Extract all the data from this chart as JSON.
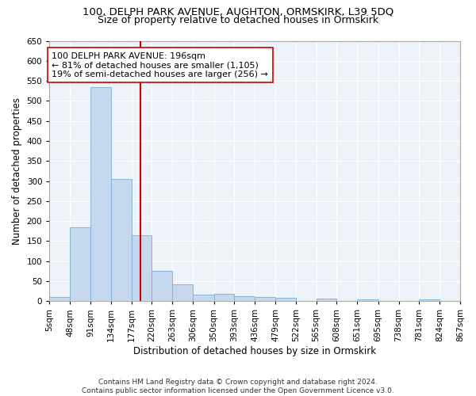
{
  "title1": "100, DELPH PARK AVENUE, AUGHTON, ORMSKIRK, L39 5DQ",
  "title2": "Size of property relative to detached houses in Ormskirk",
  "xlabel": "Distribution of detached houses by size in Ormskirk",
  "ylabel": "Number of detached properties",
  "bar_color": "#c5d8ed",
  "bar_edge_color": "#7bafd4",
  "background_color": "#eef2f9",
  "grid_color": "#ffffff",
  "annotation_line1": "100 DELPH PARK AVENUE: 196sqm",
  "annotation_line2": "← 81% of detached houses are smaller (1,105)",
  "annotation_line3": "19% of semi-detached houses are larger (256) →",
  "vline_x": 196,
  "vline_color": "#cc0000",
  "bin_edges": [
    5,
    48,
    91,
    134,
    177,
    220,
    263,
    306,
    350,
    393,
    436,
    479,
    522,
    565,
    608,
    651,
    695,
    738,
    781,
    824,
    867
  ],
  "bin_values": [
    10,
    185,
    535,
    305,
    165,
    75,
    42,
    17,
    19,
    12,
    10,
    8,
    0,
    7,
    0,
    5,
    0,
    0,
    5,
    0
  ],
  "ylim": [
    0,
    650
  ],
  "yticks": [
    0,
    50,
    100,
    150,
    200,
    250,
    300,
    350,
    400,
    450,
    500,
    550,
    600,
    650
  ],
  "footnote": "Contains HM Land Registry data © Crown copyright and database right 2024.\nContains public sector information licensed under the Open Government Licence v3.0.",
  "title1_fontsize": 9.5,
  "title2_fontsize": 9,
  "annotation_fontsize": 8,
  "xlabel_fontsize": 8.5,
  "ylabel_fontsize": 8.5,
  "footnote_fontsize": 6.5,
  "tick_fontsize": 7.5
}
